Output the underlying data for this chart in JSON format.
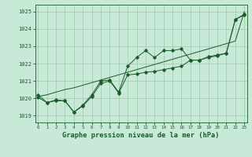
{
  "title": "Graphe pression niveau de la mer (hPa)",
  "xlabel_ticks": [
    0,
    1,
    2,
    3,
    4,
    5,
    6,
    7,
    8,
    9,
    10,
    11,
    12,
    13,
    14,
    15,
    16,
    17,
    18,
    19,
    20,
    21,
    22,
    23
  ],
  "ylim": [
    1018.6,
    1025.4
  ],
  "yticks": [
    1019,
    1020,
    1021,
    1022,
    1023,
    1024,
    1025
  ],
  "xlim": [
    -0.3,
    23.3
  ],
  "bg_color": "#c8e8d8",
  "grid_color": "#99ccaa",
  "line_color": "#1a5c2a",
  "series_jagged": [
    1020.2,
    1019.75,
    1019.85,
    1019.85,
    1019.2,
    1019.6,
    1020.2,
    1021.0,
    1021.05,
    1020.35,
    1021.85,
    1022.35,
    1022.75,
    1022.35,
    1022.75,
    1022.75,
    1022.85,
    1022.2,
    1022.2,
    1022.35,
    1022.45,
    1022.6,
    1024.55,
    1024.8
  ],
  "series_smooth": [
    1020.05,
    1019.75,
    1019.9,
    1019.85,
    1019.2,
    1019.55,
    1020.1,
    1020.85,
    1021.0,
    1020.3,
    1021.35,
    1021.4,
    1021.5,
    1021.55,
    1021.65,
    1021.75,
    1021.85,
    1022.2,
    1022.2,
    1022.4,
    1022.5,
    1022.6,
    1024.55,
    1024.85
  ],
  "series_linear": [
    1020.1,
    1020.2,
    1020.35,
    1020.5,
    1020.6,
    1020.75,
    1020.9,
    1021.05,
    1021.2,
    1021.35,
    1021.5,
    1021.65,
    1021.8,
    1021.95,
    1022.1,
    1022.25,
    1022.4,
    1022.55,
    1022.7,
    1022.85,
    1023.0,
    1023.15,
    1023.3,
    1025.0
  ]
}
